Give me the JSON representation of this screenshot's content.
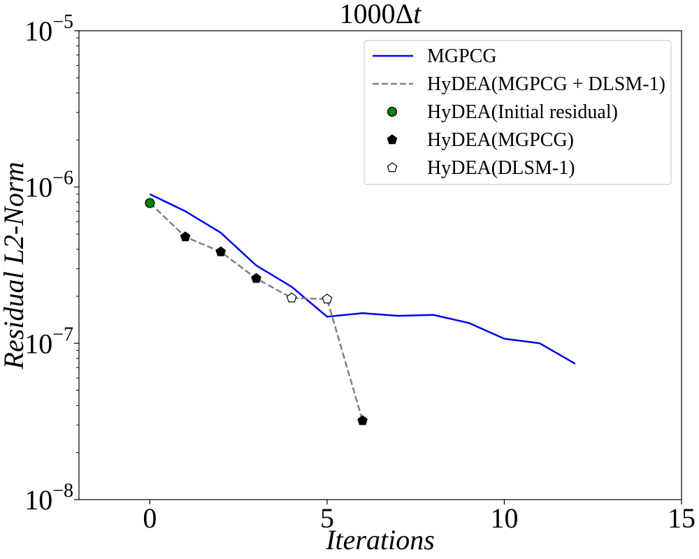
{
  "chart_data": {
    "type": "line",
    "title": "1000Δt",
    "title_parts": {
      "base": "1000Δ",
      "italic": "t"
    },
    "xlabel": "Iterations",
    "ylabel": "Residual L2-Norm",
    "x_scale": "linear",
    "y_scale": "log",
    "xlim": [
      -2,
      15
    ],
    "ylim": [
      1e-08,
      1e-05
    ],
    "x_ticks": [
      0,
      5,
      10,
      15
    ],
    "x_tick_labels": [
      "0",
      "5",
      "10",
      "15"
    ],
    "y_ticks": [
      1e-08,
      1e-07,
      1e-06,
      1e-05
    ],
    "y_tick_labels": [
      {
        "base": "10",
        "exp": "−8"
      },
      {
        "base": "10",
        "exp": "−7"
      },
      {
        "base": "10",
        "exp": "−6"
      },
      {
        "base": "10",
        "exp": "−5"
      }
    ],
    "grid": false,
    "legend_position": "top-right",
    "series": [
      {
        "name": "MGPCG",
        "style": "line",
        "color": "#0000ee",
        "x": [
          0,
          1,
          2,
          3,
          4,
          5,
          6,
          7,
          8,
          9,
          10,
          11,
          12
        ],
        "y": [
          9e-07,
          7e-07,
          5.1e-07,
          3.15e-07,
          2.3e-07,
          1.48e-07,
          1.56e-07,
          1.5e-07,
          1.52e-07,
          1.35e-07,
          1.07e-07,
          1e-07,
          7.4e-08
        ]
      },
      {
        "name": "HyDEA(MGPCG + DLSM-1)",
        "style": "dashed",
        "color": "#808080",
        "x": [
          0,
          1,
          2,
          3,
          4,
          5,
          6
        ],
        "y": [
          7.9e-07,
          4.8e-07,
          3.85e-07,
          2.6e-07,
          1.95e-07,
          1.92e-07,
          3.2e-08
        ]
      },
      {
        "name": "HyDEA(Initial residual)",
        "style": "marker-circle",
        "color": "#008000",
        "x": [
          0
        ],
        "y": [
          7.9e-07
        ]
      },
      {
        "name": "HyDEA(MGPCG)",
        "style": "marker-pentagon-filled",
        "color": "#000000",
        "x": [
          1,
          2,
          3,
          6
        ],
        "y": [
          4.8e-07,
          3.85e-07,
          2.6e-07,
          3.2e-08
        ]
      },
      {
        "name": "HyDEA(DLSM-1)",
        "style": "marker-pentagon-open",
        "color": "#ffffff",
        "x": [
          4,
          5
        ],
        "y": [
          1.95e-07,
          1.92e-07
        ]
      }
    ]
  }
}
